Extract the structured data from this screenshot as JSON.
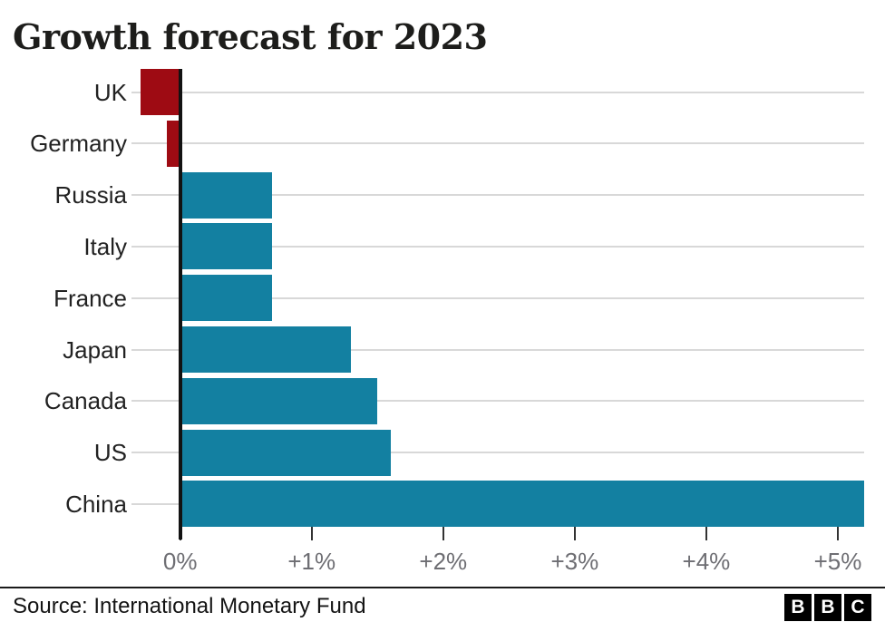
{
  "title": "Growth forecast for 2023",
  "footer": {
    "source": "Source: International Monetary Fund",
    "logo_letters": [
      "B",
      "B",
      "C"
    ]
  },
  "colors": {
    "positive_bar": "#1380a1",
    "negative_bar": "#9e0b13",
    "axis": "#121212",
    "gridline": "#d8d8d8",
    "tick": "#333333",
    "tick_label": "#6e6e73",
    "category_label": "#222222",
    "title": "#1d1d1b"
  },
  "chart_data": {
    "type": "bar",
    "orientation": "horizontal",
    "title": "Growth forecast for 2023",
    "categories": [
      "UK",
      "Germany",
      "Russia",
      "Italy",
      "France",
      "Japan",
      "Canada",
      "US",
      "China"
    ],
    "values": [
      -0.3,
      -0.1,
      0.7,
      0.7,
      0.7,
      1.3,
      1.5,
      1.6,
      5.2
    ],
    "unit": "%",
    "xlabel": "",
    "ylabel": "",
    "xlim": [
      -0.37,
      5.2
    ],
    "grid": true,
    "legend": "none",
    "xticks": [
      {
        "value": 0,
        "label": "0%"
      },
      {
        "value": 1,
        "label": "+1%"
      },
      {
        "value": 2,
        "label": "+2%"
      },
      {
        "value": 3,
        "label": "+3%"
      },
      {
        "value": 4,
        "label": "+4%"
      },
      {
        "value": 5,
        "label": "+5%"
      }
    ]
  }
}
